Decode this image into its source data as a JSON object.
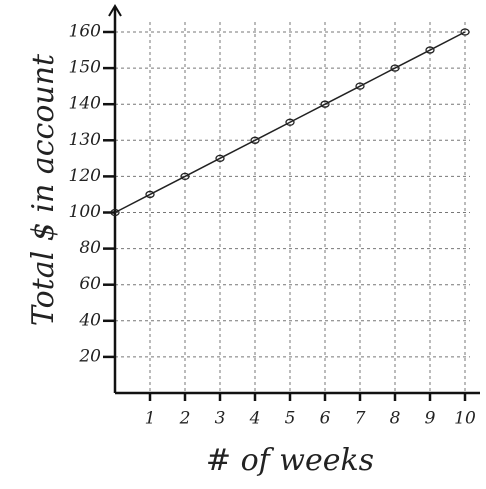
{
  "chart_data": {
    "type": "line",
    "x_label": "# of weeks",
    "y_label": "Total $ in account",
    "x": [
      0,
      1,
      2,
      3,
      4,
      5,
      6,
      7,
      8,
      9,
      10
    ],
    "series": [
      {
        "color": "#222",
        "values": [
          100,
          110,
          120,
          125,
          130,
          135,
          140,
          145,
          150,
          155,
          160
        ]
      }
    ],
    "xlim": [
      0,
      10
    ],
    "xticks": [
      1,
      2,
      3,
      4,
      5,
      6,
      7,
      8,
      9,
      10
    ],
    "ylim": [
      0,
      160
    ],
    "yticks": [
      20,
      40,
      60,
      80,
      100,
      120,
      130,
      140,
      150,
      160
    ],
    "grid": true
  }
}
